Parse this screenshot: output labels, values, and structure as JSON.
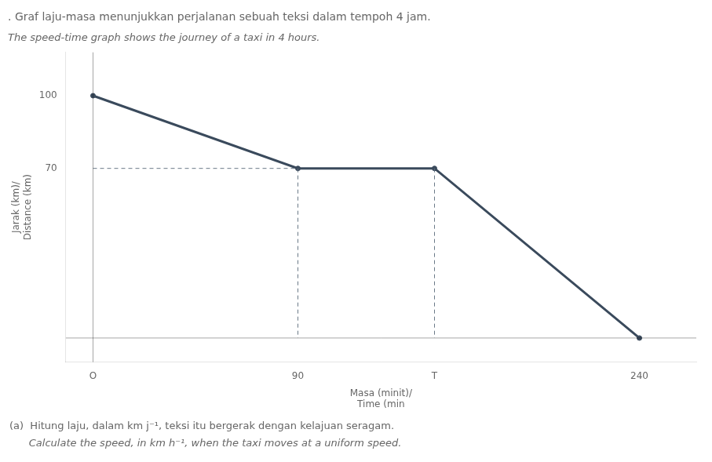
{
  "chart_data": {
    "type": "line",
    "title": ". Graf laju-masa menunjukkan perjalanan sebuah teksi dalam tempoh 4 jam.",
    "subtitle": "The speed-time graph shows the journey of a taxi in 4 hours.",
    "xlabel": [
      "Masa (minit)/",
      "Time (min"
    ],
    "ylabel": [
      "Jarak (km)/",
      "Distance (km)"
    ],
    "x": [
      0,
      90,
      150,
      240
    ],
    "values": [
      100,
      70,
      70,
      0
    ],
    "color": "#3a4a5c",
    "xlim": [
      -12,
      265
    ],
    "ylim": [
      -10,
      118
    ],
    "xticks": [
      {
        "value": 0,
        "label": "O"
      },
      90,
      {
        "value": 150,
        "label": "T"
      },
      240
    ],
    "yticks": [
      70,
      100
    ],
    "grid": false,
    "annotations": [
      "(a)  Hitung laju, dalam km j⁻¹, teksi itu bergerak dengan kelajuan seragam.",
      "      Calculate the speed, in km h⁻¹, when the taxi moves at a uniform speed."
    ]
  }
}
